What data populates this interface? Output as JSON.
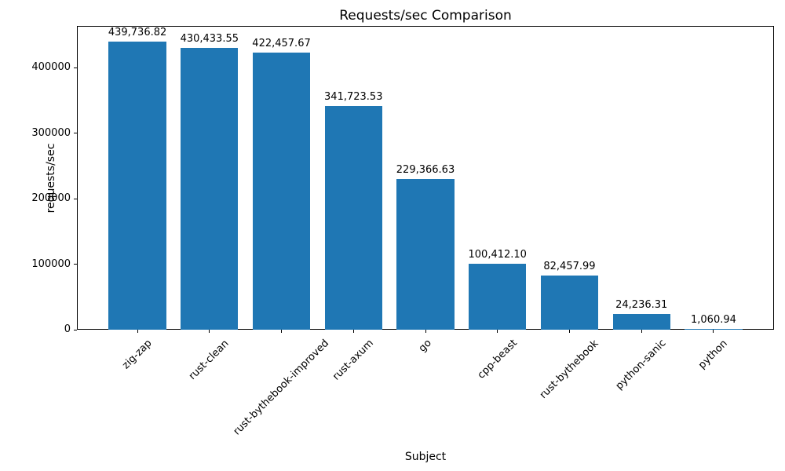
{
  "chart_data": {
    "type": "bar",
    "title": "Requests/sec Comparison",
    "xlabel": "Subject",
    "ylabel": "requests/sec",
    "categories": [
      "zig-zap",
      "rust-clean",
      "rust-bythebook-improved",
      "rust-axum",
      "go",
      "cpp-beast",
      "rust-bythebook",
      "python-sanic",
      "python"
    ],
    "values": [
      439736.82,
      430433.55,
      422457.67,
      341723.53,
      229366.63,
      100412.1,
      82457.99,
      24236.31,
      1060.94
    ],
    "value_labels": [
      "439,736.82",
      "430,433.55",
      "422,457.67",
      "341,723.53",
      "229,366.63",
      "100,412.10",
      "82,457.99",
      "24,236.31",
      "1,060.94"
    ],
    "ylim": [
      0,
      463500
    ],
    "yticks": [
      0,
      100000,
      200000,
      300000,
      400000
    ],
    "ytick_labels": [
      "0",
      "100000",
      "200000",
      "300000",
      "400000"
    ],
    "bar_color": "#1f77b4",
    "grid": false,
    "legend": "none"
  }
}
